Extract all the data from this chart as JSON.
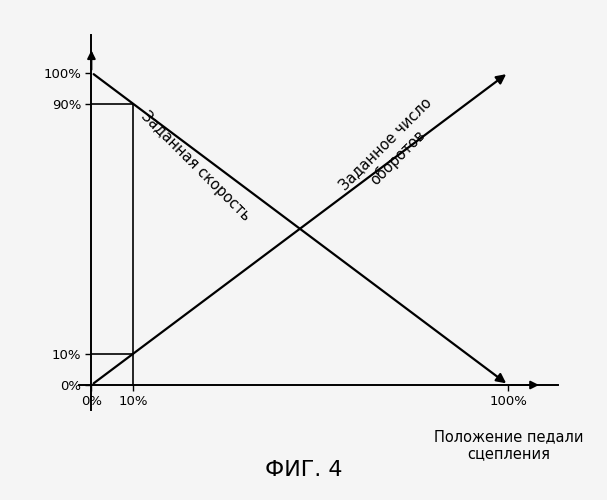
{
  "title": "ФИГ. 4",
  "xlabel_line1": "Положение педали",
  "xlabel_line2": "сцепления",
  "line1_label": "Заданная скорость",
  "line2_label": "Заданное число\nоборотов",
  "line1_x": [
    0,
    100
  ],
  "line1_y": [
    100,
    0
  ],
  "line2_x": [
    0,
    100
  ],
  "line2_y": [
    0,
    100
  ],
  "ref_x": 10,
  "ref_y1": 10,
  "ref_y2": 90,
  "xticks": [
    0,
    10,
    100
  ],
  "yticks": [
    0,
    10,
    90,
    100
  ],
  "xlim": [
    -3,
    112
  ],
  "ylim": [
    -8,
    112
  ],
  "line_color": "#000000",
  "background_color": "#f5f5f5",
  "title_fontsize": 16,
  "label_fontsize": 10.5,
  "tick_fontsize": 9.5,
  "axis_label_fontsize": 10.5
}
